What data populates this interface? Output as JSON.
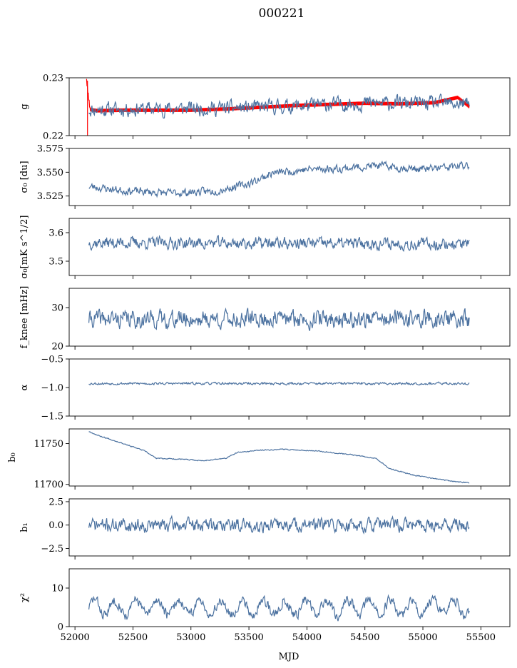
{
  "figure": {
    "title": "000221",
    "xlabel": "MJD",
    "xlim": [
      51950,
      55750
    ],
    "xticks": [
      52000,
      52500,
      53000,
      53500,
      54000,
      54500,
      55000,
      55500
    ],
    "colors": {
      "data": "#4c72a0",
      "model": "#ff0000"
    }
  },
  "chart_data": [
    {
      "type": "line",
      "name": "g",
      "ylabel": "g",
      "ylim": [
        0.22,
        0.23
      ],
      "yticks": [
        0.22,
        0.23
      ],
      "ytick_labels": [
        "0.22",
        "0.23"
      ],
      "series": [
        {
          "role": "model",
          "color": "#ff0000",
          "x": [
            52100,
            52130,
            52200,
            52400,
            52700,
            53000,
            53300,
            53600,
            53900,
            54200,
            54500,
            54800,
            55100,
            55300,
            55400
          ],
          "y": [
            0.2295,
            0.2245,
            0.2243,
            0.2244,
            0.2244,
            0.2244,
            0.2246,
            0.2249,
            0.2252,
            0.2254,
            0.2256,
            0.2255,
            0.2257,
            0.2266,
            0.225
          ],
          "band": 0.0006
        },
        {
          "role": "data",
          "color": "#4c72a0",
          "x": [
            52120,
            53500,
            54500,
            55400
          ],
          "y": [
            0.2245,
            0.2248,
            0.2256,
            0.2255
          ],
          "noise": 0.0012,
          "seed": 11
        }
      ]
    },
    {
      "type": "line",
      "name": "sigma0-du",
      "ylabel": "σ₀ [du]",
      "ylim": [
        3.515,
        3.575
      ],
      "yticks": [
        3.525,
        3.55,
        3.575
      ],
      "ytick_labels": [
        "3.525",
        "3.550",
        "3.575"
      ],
      "series": [
        {
          "role": "data",
          "color": "#4c72a0",
          "x": [
            52120,
            52400,
            52800,
            53200,
            53500,
            53700,
            54000,
            54300,
            54600,
            55000,
            55400
          ],
          "y": [
            3.535,
            3.531,
            3.528,
            3.53,
            3.538,
            3.549,
            3.553,
            3.554,
            3.557,
            3.553,
            3.557
          ],
          "noise": 0.004,
          "seed": 23
        }
      ]
    },
    {
      "type": "line",
      "name": "sigma0-mk",
      "ylabel": "σ₀[mK s^1/2]",
      "ylim": [
        3.45,
        3.65
      ],
      "yticks": [
        3.5,
        3.6
      ],
      "ytick_labels": [
        "3.5",
        "3.6"
      ],
      "series": [
        {
          "role": "data",
          "color": "#4c72a0",
          "x": [
            52120,
            55400
          ],
          "y": [
            3.565,
            3.56
          ],
          "noise": 0.02,
          "seed": 37
        }
      ]
    },
    {
      "type": "line",
      "name": "fknee",
      "ylabel": "f_knee [mHz]",
      "ylim": [
        20,
        35
      ],
      "yticks": [
        20,
        30
      ],
      "ytick_labels": [
        "20",
        "30"
      ],
      "series": [
        {
          "role": "data",
          "color": "#4c72a0",
          "x": [
            52120,
            55400
          ],
          "y": [
            27,
            27
          ],
          "noise": 2.2,
          "seed": 41
        }
      ]
    },
    {
      "type": "line",
      "name": "alpha",
      "ylabel": "α",
      "ylim": [
        -1.5,
        -0.5
      ],
      "yticks": [
        -1.5,
        -1.0,
        -0.5
      ],
      "ytick_labels": [
        "−1.5",
        "−1.0",
        "−0.5"
      ],
      "series": [
        {
          "role": "data",
          "color": "#4c72a0",
          "x": [
            52120,
            55400
          ],
          "y": [
            -0.93,
            -0.93
          ],
          "noise": 0.02,
          "seed": 53
        }
      ]
    },
    {
      "type": "line",
      "name": "b0",
      "ylabel": "b₀",
      "ylim": [
        11698,
        11768
      ],
      "yticks": [
        11700,
        11750
      ],
      "ytick_labels": [
        "11700",
        "11750"
      ],
      "series": [
        {
          "role": "data",
          "color": "#4c72a0",
          "x": [
            52120,
            52200,
            52400,
            52600,
            52700,
            52900,
            53100,
            53300,
            53400,
            53600,
            53800,
            54100,
            54400,
            54600,
            54700,
            54900,
            55100,
            55300,
            55400
          ],
          "y": [
            11765,
            11760,
            11751,
            11741,
            11732,
            11731,
            11729,
            11732,
            11739,
            11742,
            11743,
            11741,
            11736,
            11732,
            11720,
            11712,
            11707,
            11703,
            11702
          ],
          "noise": 0.6,
          "seed": 67
        }
      ]
    },
    {
      "type": "line",
      "name": "b1",
      "ylabel": "b₁",
      "ylim": [
        -3.3,
        2.8
      ],
      "yticks": [
        -2.5,
        0.0,
        2.5
      ],
      "ytick_labels": [
        "−2.5",
        "0.0",
        "2.5"
      ],
      "series": [
        {
          "role": "data",
          "color": "#4c72a0",
          "x": [
            52120,
            55400
          ],
          "y": [
            0.0,
            0.0
          ],
          "noise": 0.7,
          "seed": 71
        }
      ]
    },
    {
      "type": "line",
      "name": "chi2",
      "ylabel": "χ²",
      "ylim": [
        0,
        15
      ],
      "yticks": [
        0,
        10
      ],
      "ytick_labels": [
        "0",
        "10"
      ],
      "series": [
        {
          "role": "data",
          "color": "#4c72a0",
          "x": [
            52120,
            55400
          ],
          "y": [
            5,
            5
          ],
          "noise": 1.3,
          "seed": 83,
          "wave": 2.0
        }
      ]
    }
  ]
}
